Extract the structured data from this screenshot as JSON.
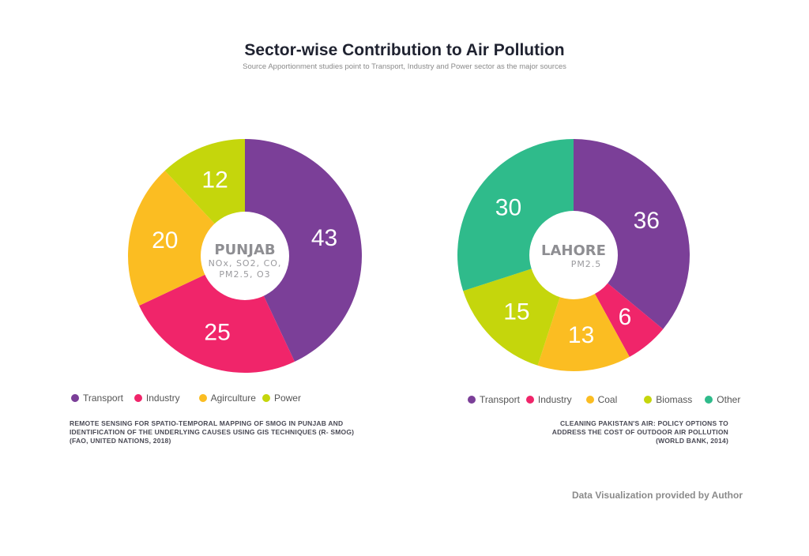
{
  "title": "Sector-wise Contribution to Air Pollution",
  "subtitle": "Source Apportionment studies point to Transport, Industry and Power sector as the major sources",
  "colors": {
    "transport": "#7b3f98",
    "industry": "#f0256a",
    "agriculture": "#fbbd22",
    "power": "#c5d60c",
    "other": "#2fbb8b"
  },
  "chart_data": [
    {
      "type": "pie",
      "center_title": "PUNJAB",
      "center_subtitle": [
        "NOx, SO2, CO,",
        "PM2.5, O3"
      ],
      "categories": [
        "Transport",
        "Industry",
        "Agirculture",
        "Power"
      ],
      "values": [
        43,
        25,
        20,
        12
      ],
      "colors": [
        "#7b3f98",
        "#f0256a",
        "#fbbd22",
        "#c5d60c"
      ],
      "legend": [
        "Transport",
        "Industry",
        "Agirculture",
        "Power"
      ],
      "source": [
        "REMOTE SENSING FOR SPATIO-TEMPORAL MAPPING OF SMOG IN PUNJAB AND",
        "IDENTIFICATION OF THE UNDERLYING CAUSES USING GIS TECHNIQUES (R- SMOG)",
        "(FAO, UNITED NATIONS, 2018)"
      ]
    },
    {
      "type": "pie",
      "center_title": "LAHORE",
      "center_subtitle": [
        "PM2.5"
      ],
      "categories": [
        "Transport",
        "Industry",
        "Coal",
        "Biomass",
        "Other"
      ],
      "values": [
        36,
        6,
        13,
        15,
        30
      ],
      "colors": [
        "#7b3f98",
        "#f0256a",
        "#fbbd22",
        "#c5d60c",
        "#2fbb8b"
      ],
      "legend": [
        "Transport",
        "Industry",
        "Coal",
        "Biomass",
        "Other"
      ],
      "source": [
        "CLEANING PAKISTAN'S AIR: POLICY OPTIONS TO",
        "ADDRESS THE COST OF OUTDOOR AIR POLLUTION",
        "(WORLD BANK, 2014)"
      ]
    }
  ],
  "credit": "Data Visualization provided by Author"
}
